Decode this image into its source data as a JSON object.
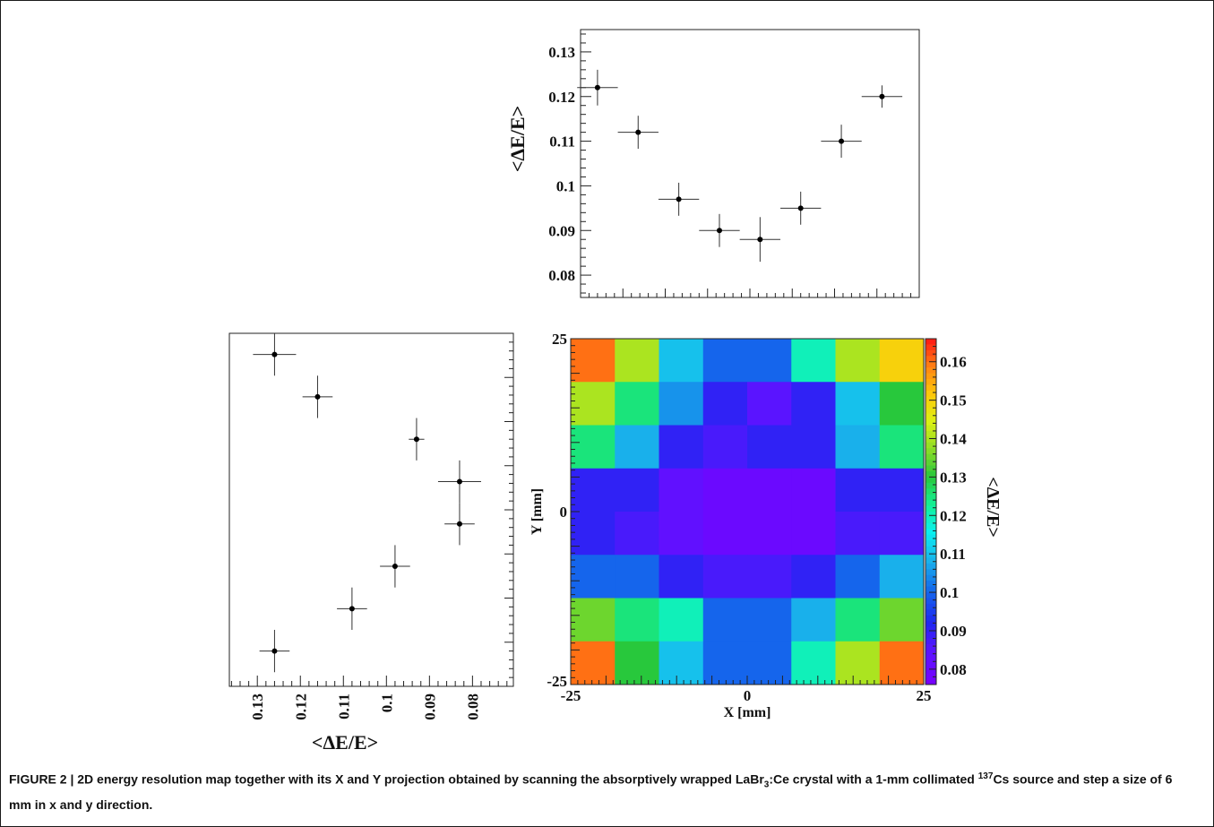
{
  "caption": {
    "figure_label": "FIGURE 2 |",
    "text_pre": " 2D energy resolution map together with its X and Y projection obtained by scanning the absorptively wrapped LaBr",
    "sub3": "3",
    "text_mid": ":Ce crystal with a 1-mm collimated ",
    "sup137": "137",
    "text_post": "Cs source and step a size of 6 mm in x and y direction."
  },
  "chart_data": [
    {
      "id": "x-projection",
      "type": "scatter",
      "x": [
        -22.5,
        -16.5,
        -10.5,
        -4.5,
        1.5,
        7.5,
        13.5,
        19.5
      ],
      "y": [
        0.122,
        0.112,
        0.097,
        0.09,
        0.088,
        0.095,
        0.11,
        0.12
      ],
      "x_err": [
        3,
        3,
        3,
        3,
        3,
        3,
        3,
        3
      ],
      "y_err": [
        0.004,
        0.0037,
        0.0037,
        0.0037,
        0.005,
        0.0037,
        0.0037,
        0.0025
      ],
      "ylabel": "<ΔE/E>",
      "xlim": [
        -25,
        25
      ],
      "ylim": [
        0.075,
        0.135
      ],
      "yticks": [
        "0.08",
        "0.09",
        "0.1",
        "0.11",
        "0.12",
        "0.13"
      ]
    },
    {
      "id": "y-projection",
      "type": "scatter",
      "orientation": "horizontal",
      "y": [
        22,
        16,
        10,
        4,
        -2,
        -8,
        -14,
        -20
      ],
      "x": [
        0.126,
        0.116,
        0.093,
        0.083,
        0.083,
        0.098,
        0.108,
        0.126
      ],
      "x_err": [
        0.005,
        0.0035,
        0.0018,
        0.005,
        0.0035,
        0.0035,
        0.0035,
        0.0035
      ],
      "y_err": [
        3,
        3,
        3,
        3,
        3,
        3,
        3,
        3
      ],
      "xlabel": "<ΔE/E>",
      "xlim": [
        0.1365,
        0.0705
      ],
      "ylim": [
        -25,
        25
      ],
      "xticks": [
        "0.13",
        "0.12",
        "0.11",
        "0.1",
        "0.09",
        "0.08"
      ]
    },
    {
      "id": "map",
      "type": "heatmap",
      "xlabel": "X [mm]",
      "ylabel": "Y [mm]",
      "colorbar_label": "<ΔE/E>",
      "xlim": [
        -25,
        25
      ],
      "ylim": [
        -25,
        25
      ],
      "xticks": [
        "-25",
        "0",
        "25"
      ],
      "yticks": [
        "25",
        "0",
        "-25"
      ],
      "zlim": [
        0.076,
        0.166
      ],
      "colorbar_ticks": [
        "0.16",
        "0.15",
        "0.14",
        "0.13",
        "0.12",
        "0.11",
        "0.1",
        "0.09",
        "0.08"
      ],
      "rows_top_to_bottom": [
        [
          0.16,
          0.14,
          0.11,
          0.1,
          0.1,
          0.12,
          0.14,
          0.15
        ],
        [
          0.14,
          0.125,
          0.105,
          0.09,
          0.085,
          0.09,
          0.11,
          0.13
        ],
        [
          0.125,
          0.108,
          0.09,
          0.087,
          0.09,
          0.09,
          0.108,
          0.125
        ],
        [
          0.09,
          0.09,
          0.083,
          0.08,
          0.08,
          0.08,
          0.09,
          0.09
        ],
        [
          0.09,
          0.087,
          0.083,
          0.08,
          0.08,
          0.08,
          0.087,
          0.087
        ],
        [
          0.1,
          0.1,
          0.09,
          0.087,
          0.087,
          0.09,
          0.1,
          0.108
        ],
        [
          0.135,
          0.125,
          0.12,
          0.1,
          0.1,
          0.108,
          0.125,
          0.135
        ],
        [
          0.16,
          0.13,
          0.11,
          0.1,
          0.1,
          0.12,
          0.14,
          0.16
        ]
      ]
    }
  ]
}
